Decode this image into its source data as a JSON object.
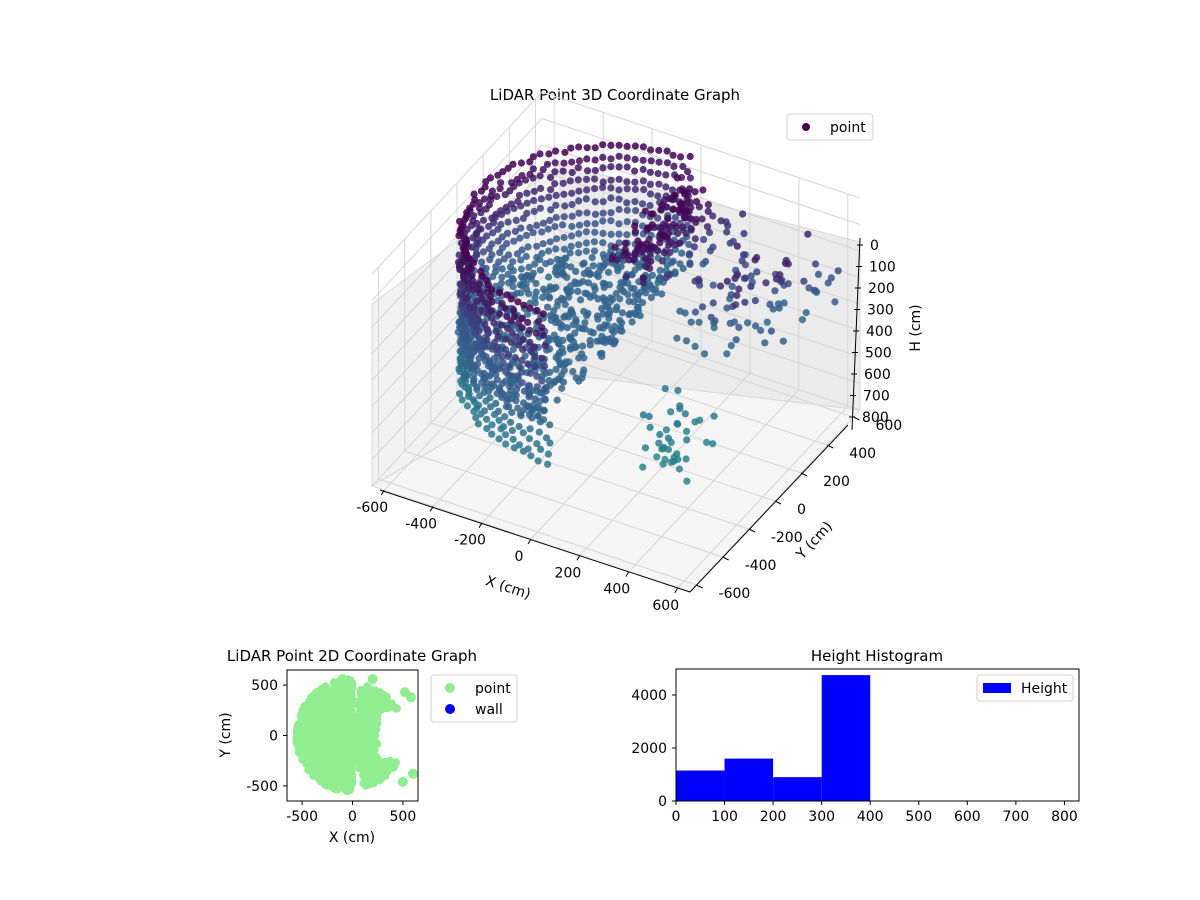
{
  "chart_data": [
    {
      "type": "scatter",
      "projection": "3d",
      "title": "LiDAR Point 3D Coordinate Graph",
      "xlabel": "X (cm)",
      "ylabel": "Y (cm)",
      "zlabel": "H (cm)",
      "xlim": [
        -650,
        650
      ],
      "ylim": [
        -650,
        650
      ],
      "zlim": [
        0,
        800
      ],
      "z_axis_inverted": true,
      "x_ticks": [
        "-600",
        "-400",
        "-200",
        "0",
        "200",
        "400",
        "600"
      ],
      "y_ticks": [
        "-600",
        "-400",
        "-200",
        "0",
        "200",
        "400",
        "600"
      ],
      "z_ticks": [
        "0",
        "100",
        "200",
        "300",
        "400",
        "500",
        "600",
        "700",
        "800"
      ],
      "grid": true,
      "legend": {
        "placement": "top-right",
        "entries": [
          "point"
        ]
      },
      "colormap": "viridis",
      "colors": {
        "high": "#440154",
        "mid": "#3b528b",
        "low": "#2c728e",
        "light": "#31a28a"
      },
      "series": [
        {
          "name": "point",
          "description_of_shape": "cylindrical wall of points at radius about 550 cm spanning x from about -600 to 0, heights 0 to 400; half-disk floor at height about 400; scattered clusters toward +x",
          "points_sampled": "wall arc x -600..0, radius 550, H 0..400; floor disk H 400; sparse clusters x 0..500, H 100..750"
        }
      ]
    },
    {
      "type": "scatter",
      "title": "LiDAR Point 2D Coordinate Graph",
      "xlabel": "X (cm)",
      "ylabel": "Y (cm)",
      "xlim": [
        -650,
        650
      ],
      "ylim": [
        -650,
        650
      ],
      "x_ticks": [
        "-500",
        "0",
        "500"
      ],
      "y_ticks": [
        "-500",
        "0",
        "500"
      ],
      "grid": false,
      "legend": {
        "placement": "outside-right",
        "entries": [
          "point",
          "wall"
        ]
      },
      "series": [
        {
          "name": "point",
          "color": "#90ee90",
          "description_of_shape": "filled disk-like region radius about 600 centred near origin, denser on left half"
        },
        {
          "name": "wall",
          "color": "#0000ff",
          "values": []
        }
      ]
    },
    {
      "type": "bar",
      "title": "Height Histogram",
      "xlabel": "",
      "ylabel": "",
      "bin_edges": [
        0,
        100,
        200,
        300,
        400,
        500,
        600,
        700,
        800
      ],
      "values": [
        1150,
        1600,
        900,
        4750,
        0,
        0,
        0,
        0
      ],
      "xlim": [
        0,
        830
      ],
      "ylim": [
        0,
        4980
      ],
      "x_ticks": [
        "0",
        "100",
        "200",
        "300",
        "400",
        "500",
        "600",
        "700",
        "800"
      ],
      "y_ticks": [
        "0",
        "2000",
        "4000"
      ],
      "legend": {
        "placement": "top-right",
        "entries": [
          "Height"
        ]
      },
      "colors": {
        "bar": "#0000ff"
      }
    }
  ]
}
